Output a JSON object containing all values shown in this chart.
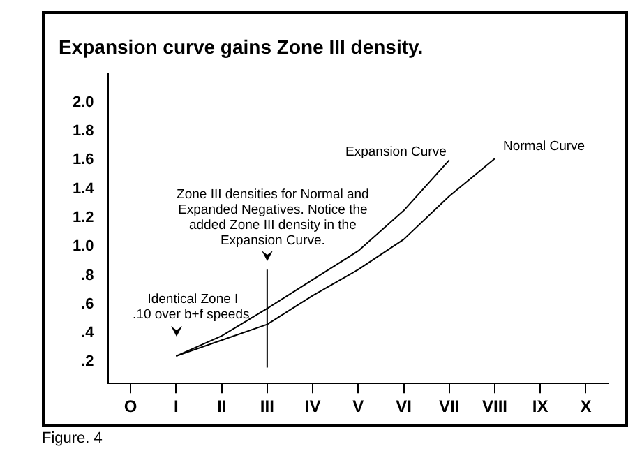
{
  "chart_data": {
    "type": "line",
    "title": "Expansion curve gains Zone III density.",
    "categories": [
      "O",
      "I",
      "II",
      "III",
      "IV",
      "V",
      "VI",
      "VII",
      "VIII",
      "IX",
      "X"
    ],
    "series": [
      {
        "name": "Expansion Curve",
        "color": "#000000",
        "values": [
          null,
          0.24,
          0.38,
          0.57,
          0.77,
          0.97,
          1.25,
          1.6,
          null,
          null,
          null
        ]
      },
      {
        "name": "Normal Curve",
        "color": "#000000",
        "values": [
          null,
          0.24,
          0.35,
          0.46,
          0.66,
          0.84,
          1.05,
          1.35,
          1.61,
          null,
          null
        ]
      }
    ],
    "ylim": [
      0.05,
      2.2
    ],
    "yticks": [
      {
        "value": 0.2,
        "label": ".2"
      },
      {
        "value": 0.4,
        "label": ".4"
      },
      {
        "value": 0.6,
        "label": ".6"
      },
      {
        "value": 0.8,
        "label": ".8"
      },
      {
        "value": 1,
        "label": "1.0"
      },
      1.2,
      1.4,
      1.6,
      1.8,
      {
        "value": 2,
        "label": "2.0"
      }
    ],
    "ref_lines": [
      {
        "axis": "x",
        "value": "III",
        "color": "#000000"
      }
    ],
    "annotations": [
      {
        "text": "Identical Zone I\n.10 over b+f speeds.",
        "x": "I",
        "y": 0.24
      },
      "Zone III densities for Normal and\nExpanded Negatives. Notice the\nadded Zone III density in the\nExpansion Curve.",
      "Figure. 4"
    ],
    "grid": false,
    "legend": false,
    "marker": "none",
    "line_style": "solid"
  }
}
